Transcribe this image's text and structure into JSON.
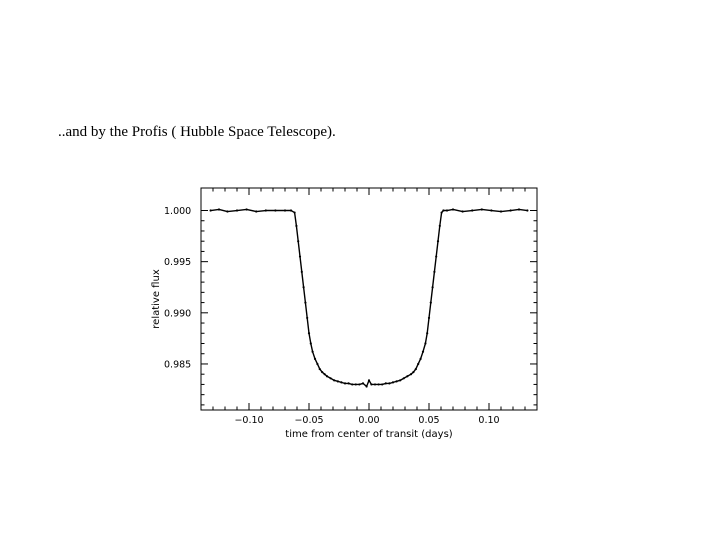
{
  "slide": {
    "caption": "..and by the Profis ( Hubble Space Telescope)."
  },
  "chart_data": {
    "type": "scatter",
    "title": "",
    "xlabel": "time from center of transit (days)",
    "ylabel": "relative flux",
    "xlim": [
      -0.14,
      0.14
    ],
    "ylim": [
      0.9805,
      1.0022
    ],
    "x_ticks": [
      {
        "value": -0.1,
        "label": "−0.10"
      },
      {
        "value": -0.05,
        "label": "−0.05"
      },
      {
        "value": 0.0,
        "label": "0.00"
      },
      {
        "value": 0.05,
        "label": "0.05"
      },
      {
        "value": 0.1,
        "label": "0.10"
      }
    ],
    "y_ticks": [
      {
        "value": 1.0,
        "label": "1.000"
      },
      {
        "value": 0.995,
        "label": "0.995"
      },
      {
        "value": 0.99,
        "label": "0.990"
      },
      {
        "value": 0.985,
        "label": "0.985"
      }
    ],
    "grid": false,
    "color": "#000000",
    "series": [
      {
        "x": [
          -0.132,
          -0.125,
          -0.118,
          -0.11,
          -0.102,
          -0.094,
          -0.086,
          -0.078,
          -0.07,
          -0.065,
          -0.062,
          -0.0605,
          -0.059,
          -0.0575,
          -0.056,
          -0.0545,
          -0.053,
          -0.0515,
          -0.05,
          -0.0485,
          -0.047,
          -0.045,
          -0.043,
          -0.041,
          -0.039,
          -0.037,
          -0.035,
          -0.032,
          -0.029,
          -0.026,
          -0.023,
          -0.02,
          -0.017,
          -0.014,
          -0.011,
          -0.008,
          -0.005,
          -0.002,
          0.0,
          0.002,
          0.005,
          0.008,
          0.011,
          0.014,
          0.017,
          0.02,
          0.023,
          0.026,
          0.029,
          0.032,
          0.035,
          0.037,
          0.039,
          0.041,
          0.043,
          0.045,
          0.047,
          0.0485,
          0.05,
          0.0515,
          0.053,
          0.0545,
          0.056,
          0.0575,
          0.059,
          0.0605,
          0.062,
          0.065,
          0.07,
          0.078,
          0.086,
          0.094,
          0.102,
          0.11,
          0.118,
          0.125,
          0.132
        ],
        "y": [
          1.0,
          1.0001,
          0.9999,
          1.0,
          1.0001,
          0.9999,
          1.0,
          1.0,
          1.0,
          1.0,
          0.9998,
          0.9985,
          0.997,
          0.9955,
          0.994,
          0.9925,
          0.991,
          0.9895,
          0.988,
          0.987,
          0.9862,
          0.9855,
          0.985,
          0.9845,
          0.9842,
          0.984,
          0.9838,
          0.9836,
          0.9834,
          0.9833,
          0.9832,
          0.9831,
          0.9831,
          0.983,
          0.983,
          0.983,
          0.9831,
          0.9828,
          0.9834,
          0.983,
          0.983,
          0.983,
          0.983,
          0.9831,
          0.9831,
          0.9832,
          0.9833,
          0.9834,
          0.9836,
          0.9838,
          0.984,
          0.9842,
          0.9845,
          0.985,
          0.9855,
          0.9862,
          0.987,
          0.988,
          0.9895,
          0.991,
          0.9925,
          0.994,
          0.9955,
          0.997,
          0.9985,
          0.9998,
          1.0,
          1.0,
          1.0001,
          0.9999,
          1.0,
          1.0001,
          1.0,
          0.9999,
          1.0,
          1.0001,
          1.0
        ]
      }
    ]
  }
}
